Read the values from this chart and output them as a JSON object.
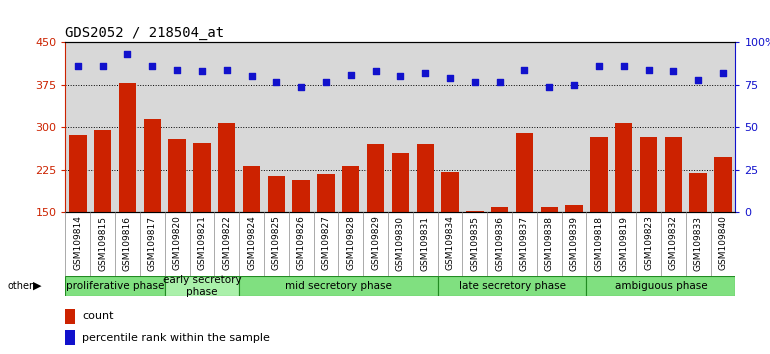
{
  "title": "GDS2052 / 218504_at",
  "samples": [
    "GSM109814",
    "GSM109815",
    "GSM109816",
    "GSM109817",
    "GSM109820",
    "GSM109821",
    "GSM109822",
    "GSM109824",
    "GSM109825",
    "GSM109826",
    "GSM109827",
    "GSM109828",
    "GSM109829",
    "GSM109830",
    "GSM109831",
    "GSM109834",
    "GSM109835",
    "GSM109836",
    "GSM109837",
    "GSM109838",
    "GSM109839",
    "GSM109818",
    "GSM109819",
    "GSM109823",
    "GSM109832",
    "GSM109833",
    "GSM109840"
  ],
  "counts": [
    286,
    296,
    378,
    315,
    280,
    272,
    308,
    232,
    215,
    208,
    218,
    232,
    270,
    255,
    270,
    222,
    152,
    160,
    291,
    160,
    163,
    283,
    307,
    283,
    284,
    220,
    248
  ],
  "percentile": [
    86,
    86,
    93,
    86,
    84,
    83,
    84,
    80,
    77,
    74,
    77,
    81,
    83,
    80,
    82,
    79,
    77,
    77,
    84,
    74,
    75,
    86,
    86,
    84,
    83,
    78,
    82
  ],
  "ylim_left": [
    150,
    450
  ],
  "ylim_right": [
    0,
    100
  ],
  "yticks_left": [
    150,
    225,
    300,
    375,
    450
  ],
  "yticks_right": [
    0,
    25,
    50,
    75,
    100
  ],
  "bar_color": "#cc2200",
  "dot_color": "#1111cc",
  "plot_bg_color": "#d8d8d8",
  "xtick_bg_color": "#c8c8c8",
  "phases": [
    {
      "label": "proliferative phase",
      "start": 0,
      "end": 4,
      "color": "#80e080"
    },
    {
      "label": "early secretory\nphase",
      "start": 4,
      "end": 7,
      "color": "#aaf0aa"
    },
    {
      "label": "mid secretory phase",
      "start": 7,
      "end": 15,
      "color": "#80e080"
    },
    {
      "label": "late secretory phase",
      "start": 15,
      "end": 21,
      "color": "#80e080"
    },
    {
      "label": "ambiguous phase",
      "start": 21,
      "end": 27,
      "color": "#80e080"
    }
  ],
  "phase_border_color": "#228B22",
  "legend_count_label": "count",
  "legend_pct_label": "percentile rank within the sample",
  "bar_color_legend": "#cc2200",
  "dot_color_legend": "#1111cc",
  "grid_linestyle": "dotted",
  "grid_color": "#000000",
  "title_fontsize": 10,
  "label_fontsize": 6.5,
  "phase_fontsize": 7.5,
  "legend_fontsize": 8
}
